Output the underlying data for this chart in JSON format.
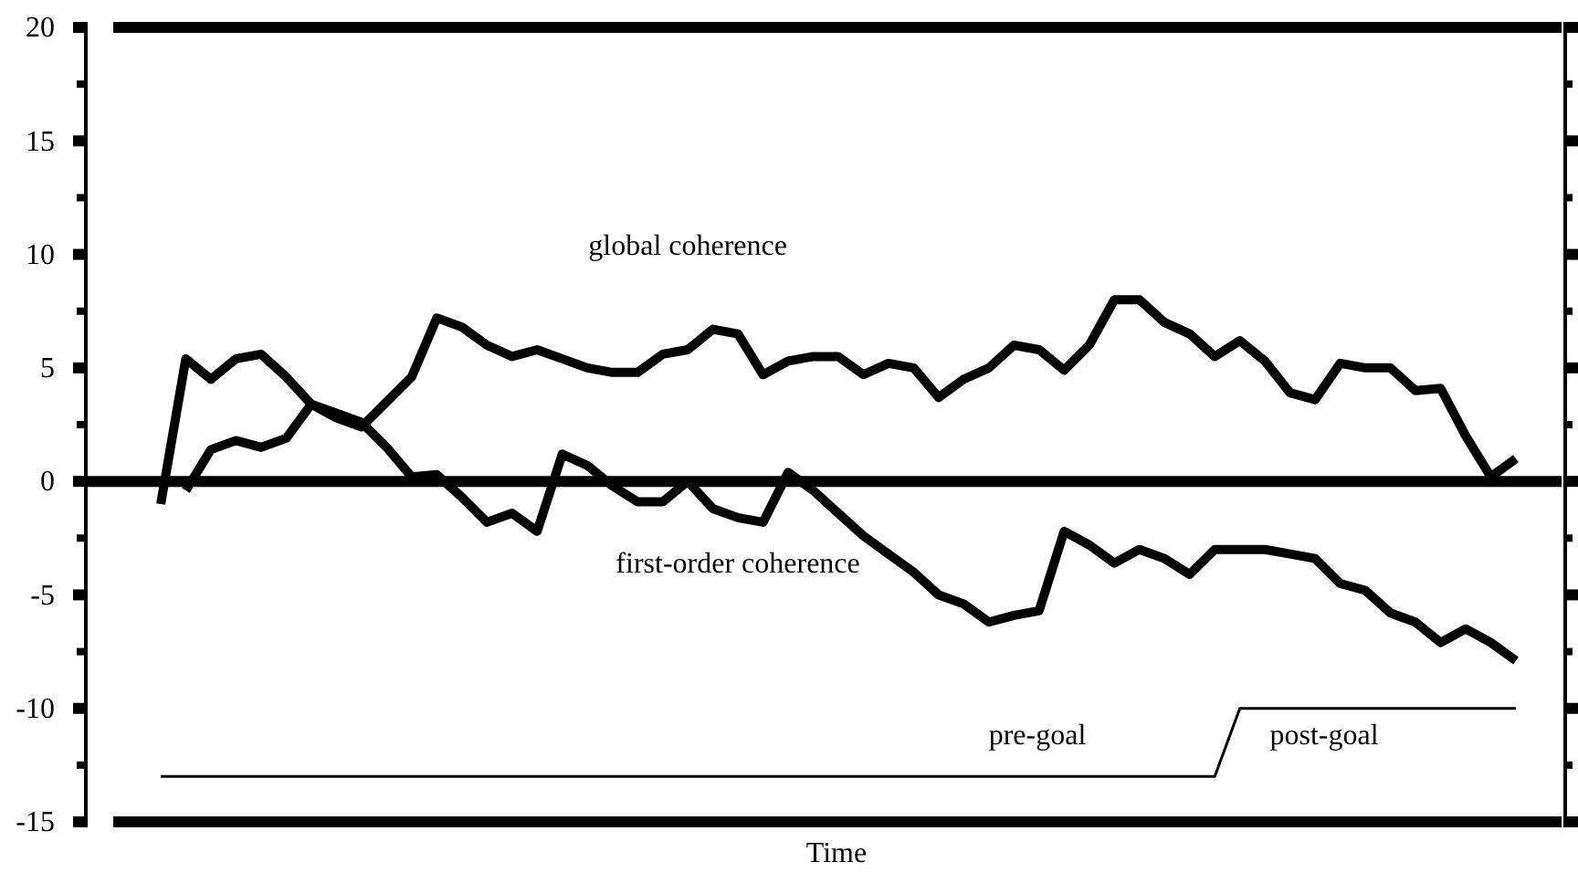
{
  "chart_data": {
    "type": "line",
    "xlabel": "Time",
    "categories": [
      null,
      null,
      null,
      null,
      null,
      null,
      null,
      null,
      null,
      null,
      null,
      null,
      null,
      null,
      null,
      null,
      null,
      null,
      null,
      null,
      null,
      null,
      null,
      null,
      null,
      null,
      null,
      null,
      null,
      null,
      null,
      null,
      null,
      null,
      null,
      null,
      null,
      null,
      null,
      null,
      null,
      null,
      null,
      null,
      null,
      null,
      null,
      null,
      null,
      null,
      null,
      null,
      null,
      null,
      null
    ],
    "series": [
      {
        "name": "global coherence",
        "color": "#000000",
        "values": [
          -1,
          5.4,
          4.5,
          5.4,
          5.6,
          4.6,
          3.4,
          2.8,
          2.4,
          3.5,
          4.6,
          7.2,
          6.8,
          6.0,
          5.5,
          5.8,
          5.4,
          5.0,
          4.8,
          4.8,
          5.6,
          5.8,
          6.7,
          6.5,
          4.7,
          5.3,
          5.5,
          5.5,
          4.7,
          5.2,
          5.0,
          3.7,
          4.5,
          5.0,
          6.0,
          5.8,
          4.9,
          6.0,
          8.0,
          8.0,
          7.0,
          6.5,
          5.5,
          6.2,
          5.3,
          3.9,
          3.6,
          5.2,
          5.0,
          5.0,
          4.0,
          4.1,
          2.0,
          0.2,
          1.0
        ]
      },
      {
        "name": "first-order coherence",
        "color": "#000000",
        "values": [
          null,
          -0.4,
          1.4,
          1.8,
          1.5,
          1.9,
          3.4,
          3.0,
          2.6,
          1.5,
          0.2,
          0.3,
          -0.7,
          -1.8,
          -1.4,
          -2.2,
          1.2,
          0.7,
          -0.2,
          -0.9,
          -0.9,
          0.0,
          -1.2,
          -1.6,
          -1.8,
          0.4,
          -0.4,
          -1.4,
          -2.4,
          -3.2,
          -4.0,
          -5.0,
          -5.4,
          -6.2,
          -5.9,
          -5.7,
          -2.2,
          -2.8,
          -3.6,
          -3.0,
          -3.4,
          -4.1,
          -3.0,
          -3.0,
          -3.0,
          -3.2,
          -3.4,
          -4.5,
          -4.8,
          -5.8,
          -6.2,
          -7.1,
          -6.5,
          -7.1,
          -7.9
        ]
      },
      {
        "type": "line",
        "color": "#000000",
        "values": [
          -13,
          null,
          null,
          null,
          null,
          null,
          null,
          null,
          null,
          null,
          null,
          null,
          null,
          null,
          null,
          null,
          null,
          null,
          null,
          null,
          null,
          null,
          null,
          null,
          null,
          null,
          null,
          null,
          null,
          null,
          null,
          null,
          null,
          null,
          null,
          null,
          null,
          null,
          null,
          null,
          null,
          null,
          -13,
          -10,
          null,
          null,
          null,
          null,
          null,
          null,
          null,
          null,
          null,
          null,
          -10
        ]
      }
    ],
    "ylim": [
      -15,
      20
    ],
    "yticks": [
      -15,
      -10,
      -5,
      0,
      5,
      10,
      15,
      20
    ],
    "ref_lines": [
      {
        "axis": "y",
        "value": 0,
        "color": "#000000"
      }
    ],
    "annotations": [
      "pre-goal",
      "post-goal"
    ],
    "line_style": "solid",
    "marker": "none",
    "grid": false,
    "legend": false
  }
}
